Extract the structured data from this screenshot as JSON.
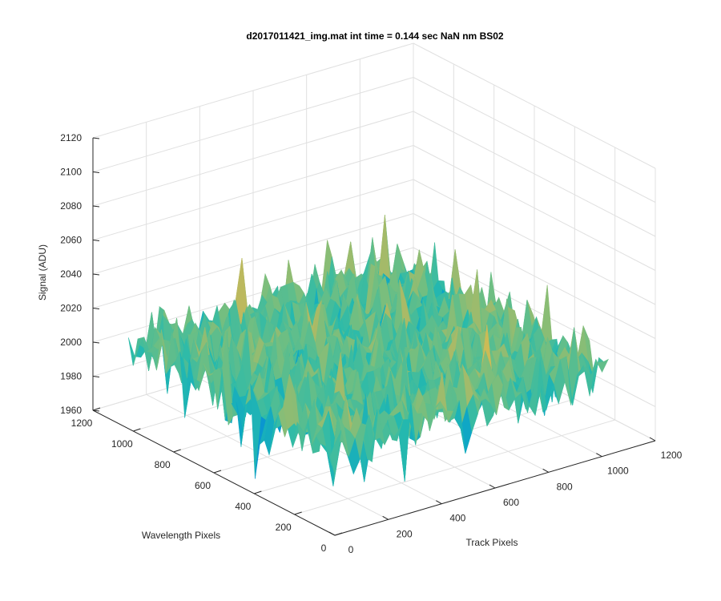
{
  "chart_data": {
    "type": "surface",
    "title": "d2017011421_img.mat int time = 0.144 sec  NaN nm BS02",
    "xlabel": "Track Pixels",
    "ylabel": "Wavelength Pixels",
    "zlabel": "Signal (ADU)",
    "xlim": [
      0,
      1200
    ],
    "ylim": [
      0,
      1200
    ],
    "zlim": [
      1960,
      2120
    ],
    "x_ticks": [
      0,
      200,
      400,
      600,
      800,
      1000,
      1200
    ],
    "y_ticks": [
      0,
      200,
      400,
      600,
      800,
      1000,
      1200
    ],
    "z_ticks": [
      1960,
      1980,
      2000,
      2020,
      2040,
      2060,
      2080,
      2100,
      2120
    ],
    "data_extent": {
      "x": [
        0,
        1024
      ],
      "y": [
        0,
        1024
      ]
    },
    "z_mean": 2010,
    "z_range_observed": [
      1960,
      2108
    ],
    "grid": true,
    "colormap": "parula"
  }
}
